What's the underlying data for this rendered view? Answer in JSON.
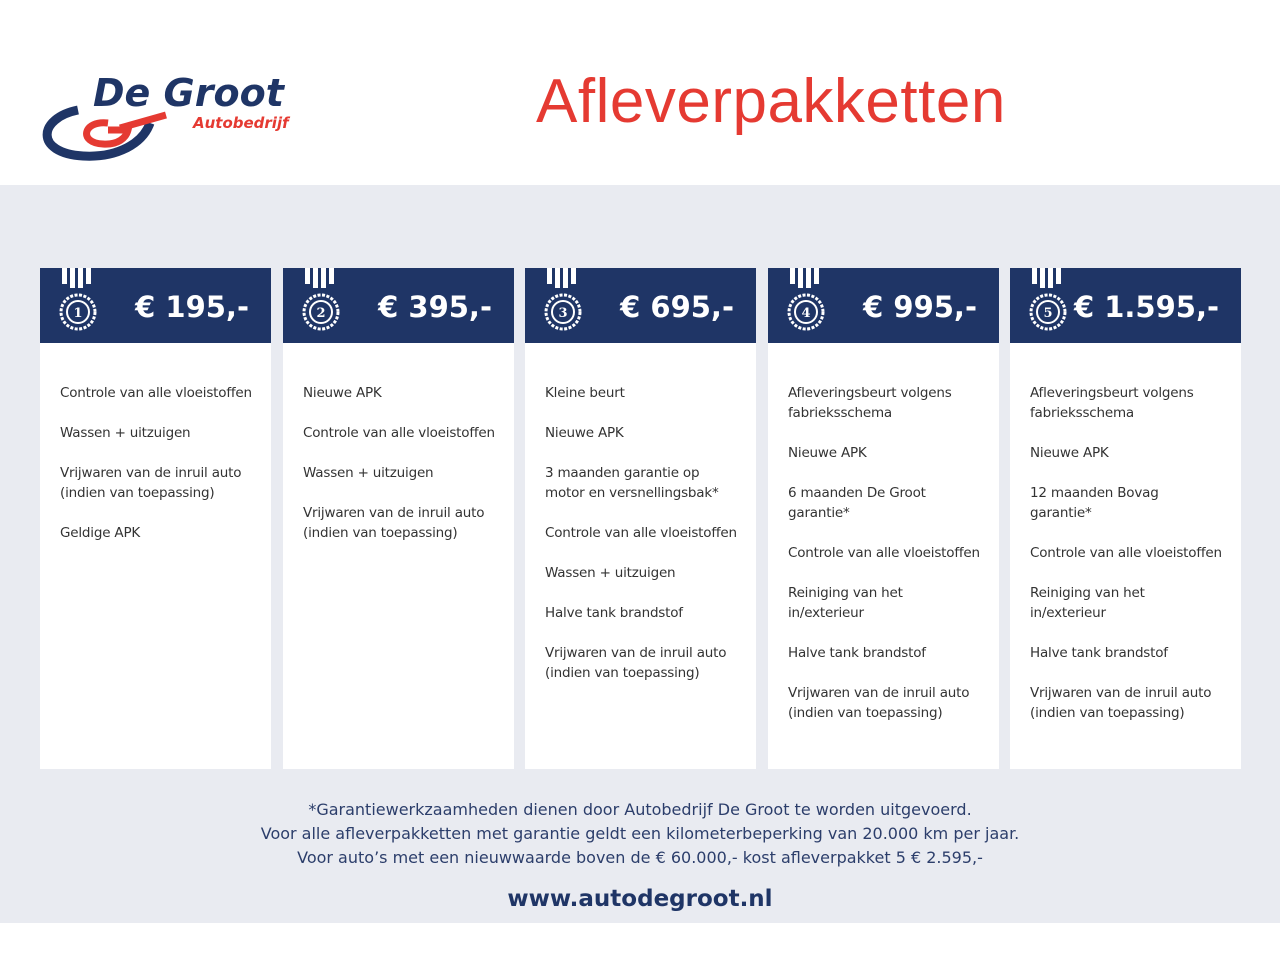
{
  "header": {
    "logo_text": "De Groot",
    "logo_sub": "Autobedrijf",
    "title": "Afleverpakketten"
  },
  "colors": {
    "navy": "#1f3566",
    "red": "#e53a32",
    "band": "#e9ebf1"
  },
  "packages": [
    {
      "number": "1",
      "price": "€ 195,-",
      "items": [
        "Controle van alle vloeistoffen",
        "Wassen + uitzuigen",
        "Vrijwaren van de inruil auto (indien van toepassing)",
        "Geldige APK"
      ]
    },
    {
      "number": "2",
      "price": "€ 395,-",
      "items": [
        "Nieuwe APK",
        "Controle van alle vloeistoffen",
        "Wassen + uitzuigen",
        "Vrijwaren van de inruil auto (indien van toepassing)"
      ]
    },
    {
      "number": "3",
      "price": "€ 695,-",
      "items": [
        "Kleine beurt",
        "Nieuwe APK",
        "3 maanden garantie op motor en versnellingsbak*",
        "Controle van alle vloeistoffen",
        "Wassen + uitzuigen",
        "Halve tank brandstof",
        "Vrijwaren van de inruil auto (indien van toepassing)"
      ]
    },
    {
      "number": "4",
      "price": "€ 995,-",
      "items": [
        "Afleveringsbeurt volgens fabrieksschema",
        "Nieuwe APK",
        "6 maanden De Groot garantie*",
        "Controle van alle vloeistoffen",
        "Reiniging van het in/exterieur",
        "Halve tank brandstof",
        "Vrijwaren van de inruil auto (indien van toepassing)"
      ]
    },
    {
      "number": "5",
      "price": "€ 1.595,-",
      "items": [
        "Afleveringsbeurt volgens fabrieksschema",
        "Nieuwe APK",
        "12 maanden Bovag garantie*",
        "Controle van alle vloeistoffen",
        "Reiniging van het in/exterieur",
        "Halve tank brandstof",
        "Vrijwaren van de inruil auto (indien van toepassing)"
      ]
    }
  ],
  "footer": {
    "lines": [
      "*Garantiewerkzaamheden dienen door Autobedrijf De Groot te worden uitgevoerd.",
      "Voor alle afleverpakketten met garantie geldt een kilometerbeperking van 20.000 km per jaar.",
      "Voor auto’s met een nieuwwaarde boven de € 60.000,- kost afleverpakket 5 € 2.595,-"
    ],
    "url": "www.autodegroot.nl"
  }
}
